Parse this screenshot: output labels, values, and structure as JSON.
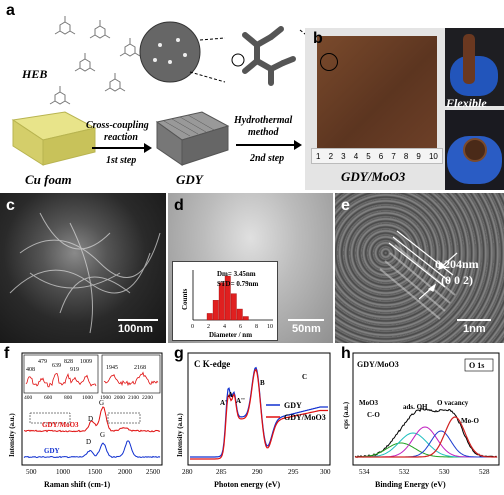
{
  "panels": {
    "a": {
      "letter": "a",
      "heb_label": "HEB",
      "step1_text1": "Cross-coupling",
      "step1_text2": "reaction",
      "step1_label": "1st step",
      "step2_text1": "Hydrothermal",
      "step2_text2": "method",
      "step2_label": "2nd step",
      "cu_foam_label": "Cu foam",
      "gdy_label": "GDY"
    },
    "b": {
      "letter": "b",
      "label": "GDY/MoO3",
      "flexible_label": "Flexible",
      "ruler_ticks": [
        "1",
        "2",
        "3",
        "4",
        "5",
        "6",
        "7",
        "8",
        "9",
        "10"
      ]
    },
    "c": {
      "letter": "c",
      "scale": "100nm"
    },
    "d": {
      "letter": "d",
      "scale": "50nm",
      "inset_dm": "Dm= 3.45nm",
      "inset_std": "STD= 0.79nm",
      "inset_ylabel": "Counts",
      "inset_xlabel": "Diameter / nm",
      "inset_xticks": [
        "0",
        "2",
        "4",
        "6",
        "8",
        "10"
      ]
    },
    "e": {
      "letter": "e",
      "spacing": "0.204nm",
      "plane": "(0 0 2)",
      "scale": "1nm"
    },
    "f": {
      "letter": "f",
      "inset_peaks": [
        "408",
        "479",
        "639",
        "828",
        "919",
        "1009"
      ],
      "inset2_peaks": [
        "1945",
        "2168"
      ],
      "inset_xticks": [
        "400",
        "600",
        "800",
        "1000"
      ],
      "inset2_xticks": [
        "1900",
        "2000",
        "2100",
        "2200"
      ],
      "xlabel": "Raman shift (cm-1)",
      "ylabel": "Intensity (a.u.)",
      "xticks": [
        "500",
        "1000",
        "1500",
        "2000",
        "2500"
      ],
      "series_top": "GDY/MoO3",
      "series_bottom": "GDY",
      "peak_D": "D",
      "peak_G": "G"
    },
    "g": {
      "letter": "g",
      "title": "C K-edge",
      "xlabel": "Photon energy (eV)",
      "ylabel": "Intensity (a.u.)",
      "xticks": [
        "280",
        "285",
        "290",
        "295",
        "300"
      ],
      "peaks": [
        "A'",
        "A",
        "A''",
        "B",
        "C"
      ],
      "legend": [
        "GDY",
        "GDY/MoO3"
      ]
    },
    "h": {
      "letter": "h",
      "title": "O 1s",
      "sample": "GDY/MoO3",
      "xlabel": "Binding Energy (eV)",
      "ylabel": "cps (a.u.)",
      "xticks": [
        "534",
        "532",
        "530",
        "528"
      ],
      "annotations": [
        "MoO3",
        "C-O",
        "ads. OH",
        "O vacancy",
        "Mo-O"
      ]
    }
  },
  "colors": {
    "red": "#e01010",
    "blue": "#1030d0",
    "inset_bar": "#e02020"
  }
}
